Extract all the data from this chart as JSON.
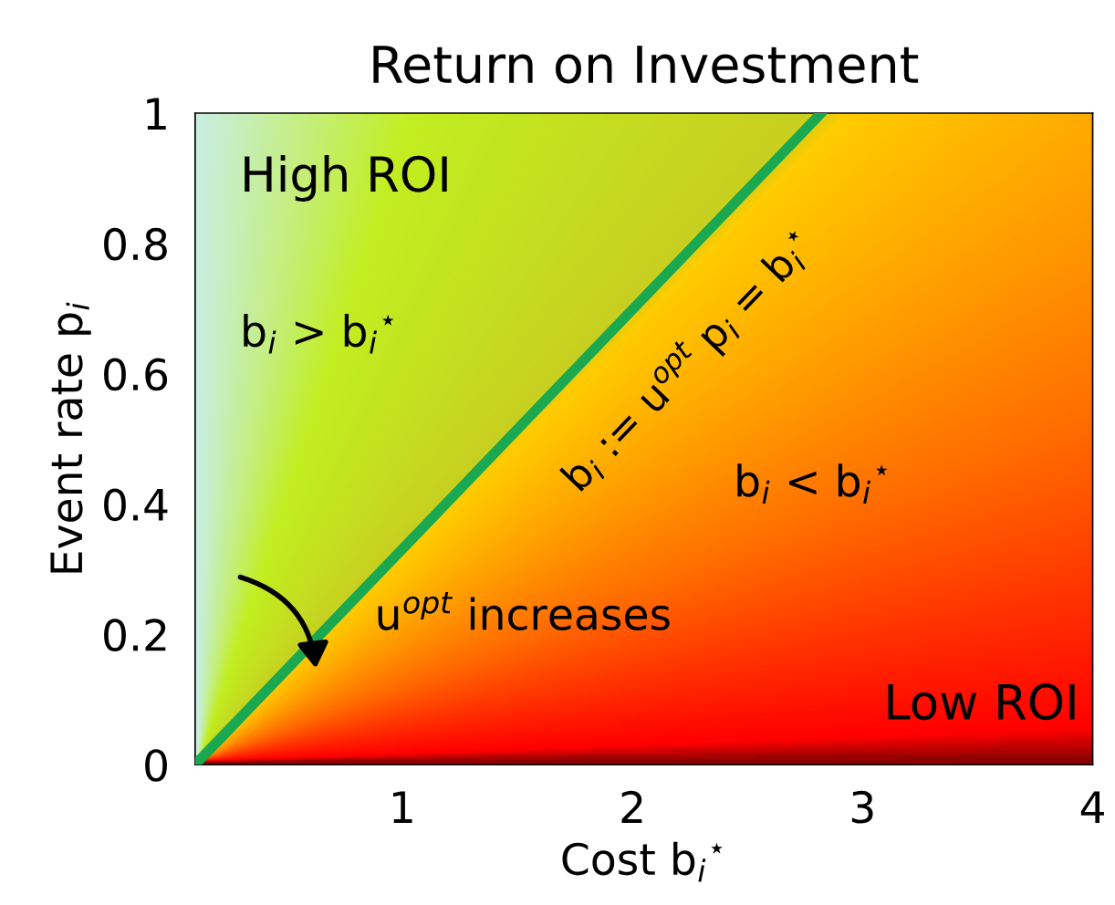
{
  "chart_data": {
    "type": "line",
    "title": "Return on Investment",
    "xlabel": "Cost b$_{i}$$^{⋆}$",
    "ylabel": "Event rate p$_{i}$",
    "series": [
      {
        "color": "#1aa850",
        "x": [
          0.1,
          2.82
        ],
        "values": [
          0,
          1
        ]
      }
    ],
    "xlim": [
      0.1,
      4
    ],
    "xticks": [
      1,
      2,
      3,
      4
    ],
    "ylim": [
      0,
      1
    ],
    "yticks": [
      0,
      0.2,
      0.4,
      0.6,
      0.8,
      1
    ],
    "annotations": [
      "High ROI",
      "b$_{i}$ > b$_{i}$$^{⋆}$",
      "b$_{i}$ := u$^{opt}$ p$_{i}$ = b$_{i}$$^{⋆}$",
      "u$^{opt}$ increases",
      "b$_{i}$ < b$_{i}$$^{⋆}$",
      "Low ROI"
    ],
    "grid": false,
    "legend": false,
    "marker": "none",
    "line_style": "solid"
  }
}
